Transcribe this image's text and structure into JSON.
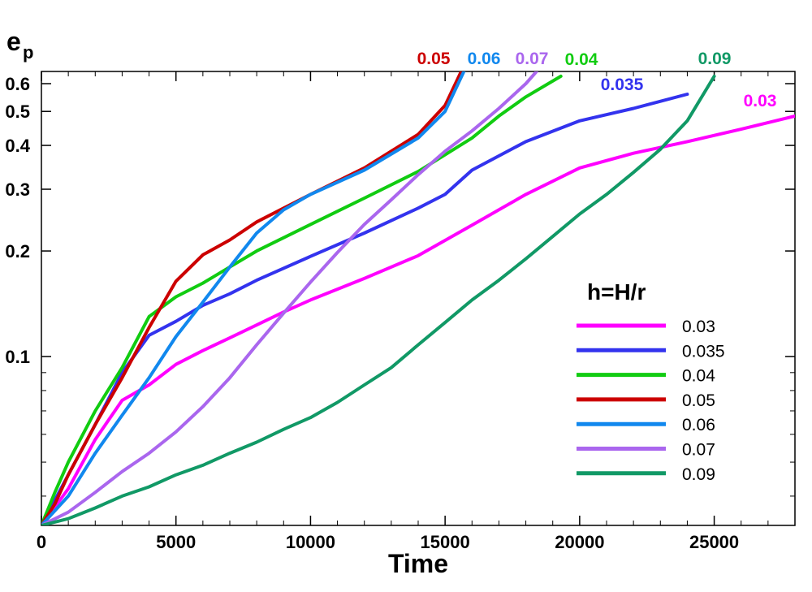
{
  "chart_data": {
    "type": "line",
    "xlabel": "Time",
    "ylabel_main": "e",
    "ylabel_sub": "p",
    "xscale": "linear",
    "yscale": "log",
    "xlim": [
      0,
      28000
    ],
    "ylim": [
      0.033,
      0.65
    ],
    "x_ticks": [
      0,
      5000,
      10000,
      15000,
      20000,
      25000
    ],
    "x_tick_labels": [
      "0",
      "5000",
      "10000",
      "15000",
      "20000",
      "25000"
    ],
    "y_labeled_ticks": [
      0.1,
      0.2,
      0.3,
      0.4,
      0.5,
      0.6
    ],
    "y_labeled_tick_labels": [
      "0.1",
      "0.2",
      "0.3",
      "0.4",
      "0.5",
      "0.6"
    ],
    "y_minor_ticks": [
      0.04,
      0.05,
      0.06,
      0.07,
      0.08,
      0.09
    ],
    "legend": {
      "title": "h=H/r",
      "position": "lower-right"
    },
    "series": [
      {
        "name": "0.03",
        "end_label": "0.03",
        "color": "#ff00ff",
        "points": [
          [
            0,
            0.033
          ],
          [
            1000,
            0.042
          ],
          [
            2000,
            0.058
          ],
          [
            3000,
            0.075
          ],
          [
            4000,
            0.083
          ],
          [
            5000,
            0.095
          ],
          [
            6000,
            0.104
          ],
          [
            7000,
            0.113
          ],
          [
            8000,
            0.123
          ],
          [
            9000,
            0.134
          ],
          [
            10000,
            0.145
          ],
          [
            12000,
            0.167
          ],
          [
            14000,
            0.194
          ],
          [
            16000,
            0.237
          ],
          [
            18000,
            0.29
          ],
          [
            20000,
            0.345
          ],
          [
            22000,
            0.38
          ],
          [
            24000,
            0.41
          ],
          [
            26000,
            0.445
          ],
          [
            28000,
            0.485
          ]
        ]
      },
      {
        "name": "0.035",
        "end_label": "0.035",
        "color": "#3333ee",
        "points": [
          [
            0,
            0.033
          ],
          [
            1000,
            0.046
          ],
          [
            2000,
            0.064
          ],
          [
            3000,
            0.09
          ],
          [
            4000,
            0.115
          ],
          [
            5000,
            0.126
          ],
          [
            6000,
            0.14
          ],
          [
            7000,
            0.151
          ],
          [
            8000,
            0.165
          ],
          [
            10000,
            0.193
          ],
          [
            12000,
            0.225
          ],
          [
            14000,
            0.265
          ],
          [
            15000,
            0.29
          ],
          [
            16000,
            0.34
          ],
          [
            18000,
            0.41
          ],
          [
            20000,
            0.47
          ],
          [
            22000,
            0.51
          ],
          [
            24000,
            0.56
          ]
        ]
      },
      {
        "name": "0.04",
        "end_label": "0.04",
        "color": "#11cc11",
        "points": [
          [
            0,
            0.033
          ],
          [
            500,
            0.041
          ],
          [
            1000,
            0.05
          ],
          [
            2000,
            0.07
          ],
          [
            3000,
            0.093
          ],
          [
            4000,
            0.13
          ],
          [
            5000,
            0.148
          ],
          [
            6000,
            0.162
          ],
          [
            7000,
            0.18
          ],
          [
            8000,
            0.2
          ],
          [
            10000,
            0.238
          ],
          [
            12000,
            0.283
          ],
          [
            14000,
            0.337
          ],
          [
            16000,
            0.42
          ],
          [
            17000,
            0.485
          ],
          [
            18000,
            0.55
          ],
          [
            19300,
            0.63
          ]
        ]
      },
      {
        "name": "0.05",
        "end_label": "0.05",
        "color": "#cc0000",
        "points": [
          [
            0,
            0.033
          ],
          [
            500,
            0.038
          ],
          [
            1000,
            0.046
          ],
          [
            2000,
            0.064
          ],
          [
            3000,
            0.087
          ],
          [
            4000,
            0.121
          ],
          [
            5000,
            0.164
          ],
          [
            6000,
            0.195
          ],
          [
            7000,
            0.215
          ],
          [
            8000,
            0.242
          ],
          [
            9000,
            0.265
          ],
          [
            10000,
            0.29
          ],
          [
            12000,
            0.345
          ],
          [
            14000,
            0.43
          ],
          [
            15000,
            0.52
          ],
          [
            15600,
            0.65
          ]
        ]
      },
      {
        "name": "0.06",
        "end_label": "0.06",
        "color": "#1188ee",
        "points": [
          [
            0,
            0.033
          ],
          [
            1000,
            0.04
          ],
          [
            2000,
            0.053
          ],
          [
            3000,
            0.068
          ],
          [
            4000,
            0.087
          ],
          [
            5000,
            0.114
          ],
          [
            6000,
            0.143
          ],
          [
            7000,
            0.18
          ],
          [
            8000,
            0.225
          ],
          [
            9000,
            0.262
          ],
          [
            10000,
            0.29
          ],
          [
            12000,
            0.34
          ],
          [
            14000,
            0.42
          ],
          [
            15000,
            0.5
          ],
          [
            15700,
            0.65
          ]
        ]
      },
      {
        "name": "0.07",
        "end_label": "0.07",
        "color": "#aa66ee",
        "points": [
          [
            0,
            0.033
          ],
          [
            1000,
            0.036
          ],
          [
            2000,
            0.041
          ],
          [
            3000,
            0.047
          ],
          [
            4000,
            0.053
          ],
          [
            5000,
            0.061
          ],
          [
            6000,
            0.072
          ],
          [
            7000,
            0.087
          ],
          [
            8000,
            0.108
          ],
          [
            9000,
            0.133
          ],
          [
            10000,
            0.163
          ],
          [
            11000,
            0.198
          ],
          [
            12000,
            0.238
          ],
          [
            13000,
            0.28
          ],
          [
            14000,
            0.33
          ],
          [
            15000,
            0.385
          ],
          [
            16000,
            0.44
          ],
          [
            17000,
            0.51
          ],
          [
            18000,
            0.6
          ],
          [
            18400,
            0.65
          ]
        ]
      },
      {
        "name": "0.09",
        "end_label": "0.09",
        "color": "#119966",
        "points": [
          [
            0,
            0.033
          ],
          [
            1000,
            0.0345
          ],
          [
            2000,
            0.037
          ],
          [
            3000,
            0.04
          ],
          [
            4000,
            0.0425
          ],
          [
            5000,
            0.046
          ],
          [
            6000,
            0.049
          ],
          [
            7000,
            0.053
          ],
          [
            8000,
            0.057
          ],
          [
            9000,
            0.062
          ],
          [
            10000,
            0.067
          ],
          [
            11000,
            0.074
          ],
          [
            12000,
            0.083
          ],
          [
            13000,
            0.093
          ],
          [
            14000,
            0.108
          ],
          [
            15000,
            0.125
          ],
          [
            16000,
            0.145
          ],
          [
            17000,
            0.165
          ],
          [
            18000,
            0.19
          ],
          [
            19000,
            0.22
          ],
          [
            20000,
            0.255
          ],
          [
            21000,
            0.29
          ],
          [
            22000,
            0.335
          ],
          [
            23000,
            0.39
          ],
          [
            24000,
            0.47
          ],
          [
            25000,
            0.63
          ]
        ]
      }
    ]
  }
}
